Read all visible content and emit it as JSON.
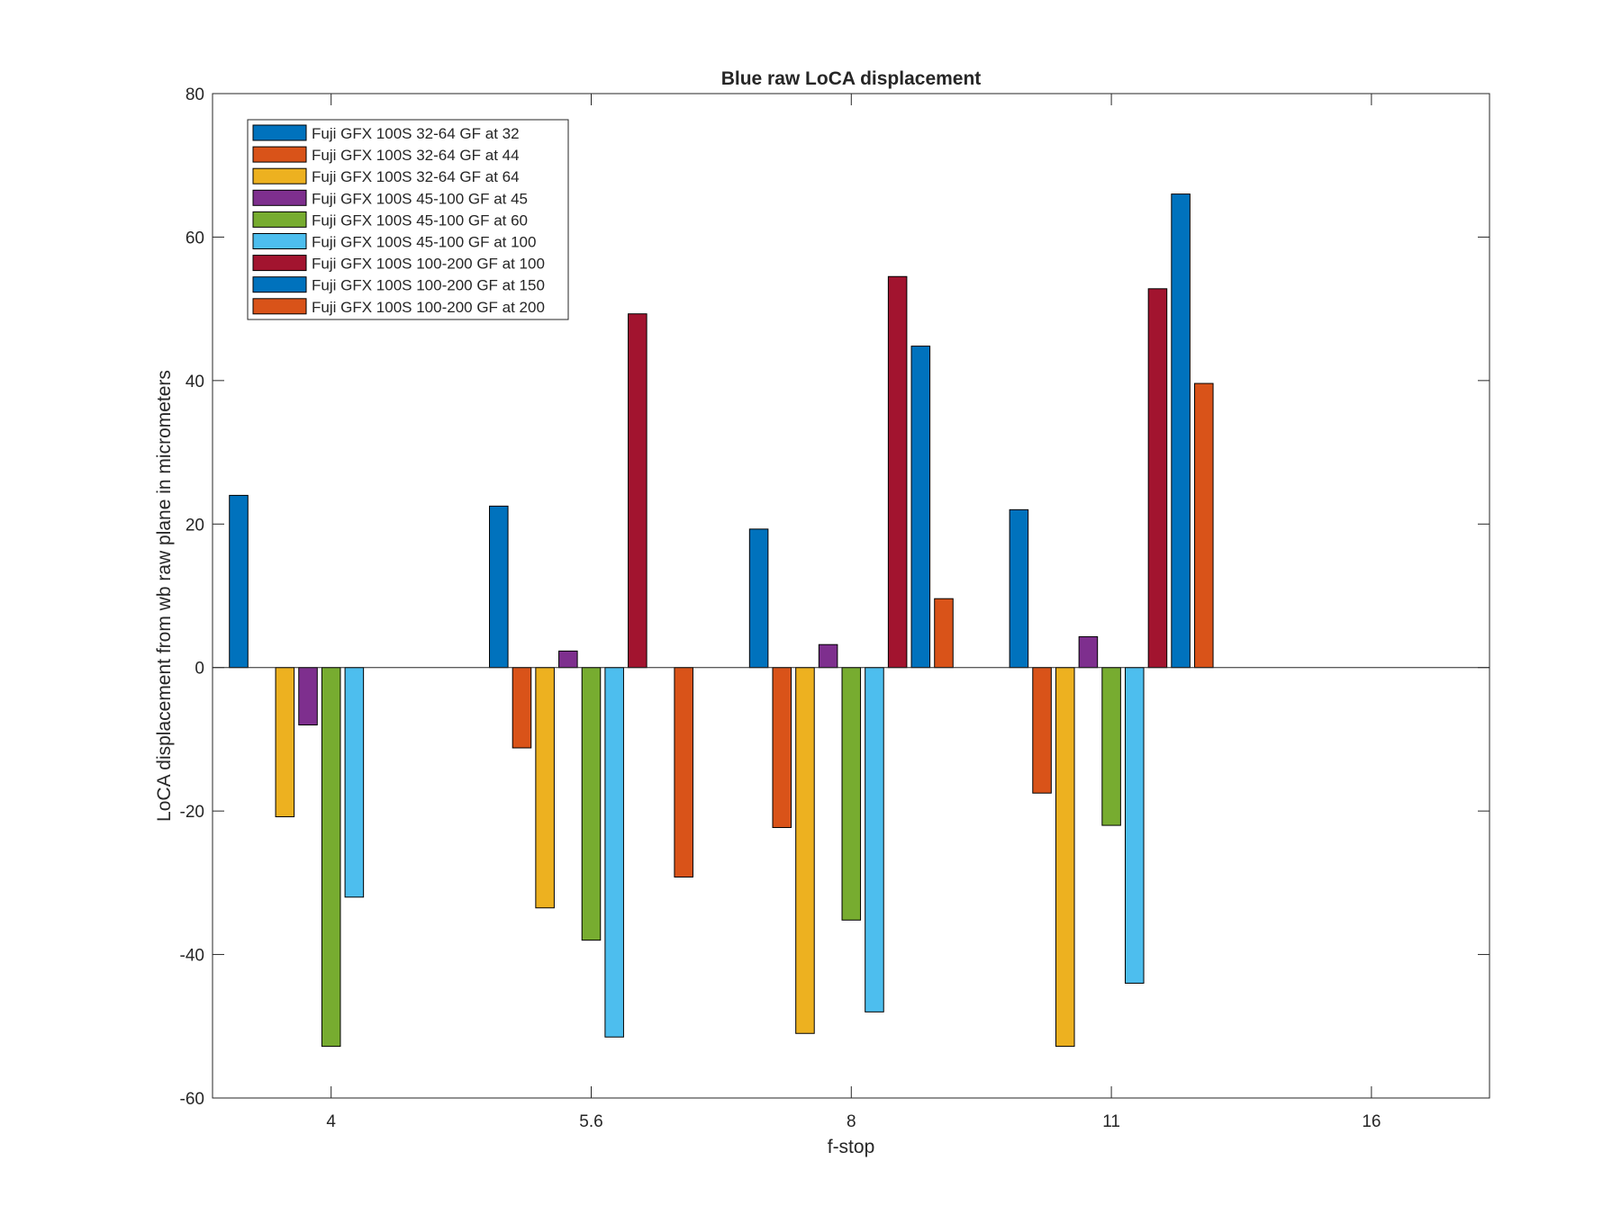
{
  "chart_data": {
    "type": "bar",
    "title": "Blue raw  LoCA displacement",
    "xlabel": "f-stop",
    "ylabel": "LoCA displacement from wb raw plane in micrometers",
    "categories": [
      "4",
      "5.6",
      "8",
      "11",
      "16"
    ],
    "ylim": [
      -60,
      80
    ],
    "yticks": [
      -60,
      -40,
      -20,
      0,
      20,
      40,
      60,
      80
    ],
    "grid": false,
    "legend_position": "top-left",
    "series": [
      {
        "name": "Fuji GFX 100S 32-64 GF at 32",
        "color": "#0072BD",
        "values": [
          24,
          22.5,
          19.3,
          22,
          0
        ]
      },
      {
        "name": "Fuji GFX 100S 32-64 GF at 44",
        "color": "#D95319",
        "values": [
          0,
          -11.2,
          -22.3,
          -17.5,
          0
        ]
      },
      {
        "name": "Fuji GFX 100S 32-64 GF at 64",
        "color": "#EDB120",
        "values": [
          -20.8,
          -33.5,
          -51,
          -52.8,
          0
        ]
      },
      {
        "name": "Fuji GFX 100S 45-100 GF at 45",
        "color": "#7E2F8E",
        "values": [
          -8,
          2.3,
          3.2,
          4.3,
          0
        ]
      },
      {
        "name": "Fuji GFX 100S 45-100 GF at 60",
        "color": "#77AC30",
        "values": [
          -52.8,
          -38,
          -35.2,
          -22,
          0
        ]
      },
      {
        "name": "Fuji GFX 100S 45-100 GF at 100",
        "color": "#4DBEEE",
        "values": [
          -32,
          -51.5,
          -48,
          -44,
          0
        ]
      },
      {
        "name": "Fuji GFX 100S 100-200 GF at 100",
        "color": "#A2142F",
        "values": [
          0,
          49.3,
          54.5,
          52.8,
          0
        ]
      },
      {
        "name": "Fuji GFX 100S 100-200 GF at 150",
        "color": "#0072BD",
        "values": [
          0,
          0,
          44.8,
          66,
          0
        ]
      },
      {
        "name": "Fuji GFX 100S 100-200 GF at 200",
        "color": "#D95319",
        "values": [
          0,
          -29.2,
          9.6,
          39.6,
          0
        ]
      }
    ]
  }
}
